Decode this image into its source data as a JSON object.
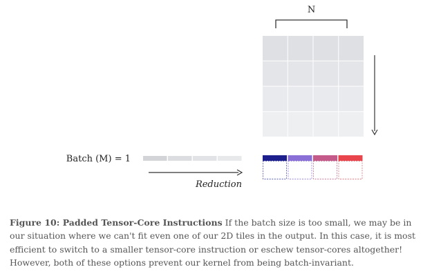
{
  "diagram": {
    "n_label": "N",
    "batch_label": "Batch (M) = 1",
    "reduction_label": "Reduction",
    "grid": {
      "rows": 4,
      "cols": 4
    },
    "grid_row_colors": [
      "#dfe0e4",
      "#e4e5e8",
      "#e9eaed",
      "#eeeff1"
    ],
    "batch_segments": 4,
    "batch_segment_colors": [
      "#d3d4d8",
      "#dcdde0",
      "#e2e3e6",
      "#e8e9eb"
    ],
    "output_colors": [
      "#1c1f8c",
      "#8a6fd6",
      "#c45a8a",
      "#e8454c"
    ],
    "padding_border_colors": [
      "#5a5fb8",
      "#9a88d8",
      "#c97a9c",
      "#e07a80"
    ]
  },
  "caption": {
    "title": "Figure 10: Padded Tensor-Core Instructions",
    "text": " If the batch size is too small, we may be in our situation where we can't fit even one of our 2D tiles in the output. In this case, it is most efficient to switch to a smaller tensor-core instruction or eschew tensor-cores altogether! However, both of these options prevent our kernel from being batch-invariant."
  }
}
